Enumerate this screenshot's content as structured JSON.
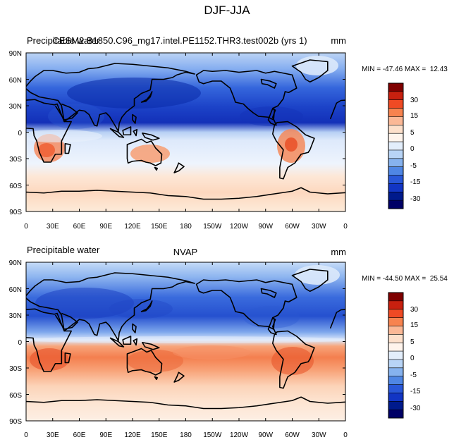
{
  "figure": {
    "title": "DJF-JJA"
  },
  "panels": [
    {
      "left_title": "Precipitable water",
      "center_title": "CESM2.B1850.C96_mg17.intel.PE1152.THR3.test002b (yrs 1)",
      "units": "mm",
      "stats": "MIN = -47.46 MAX =  12.43"
    },
    {
      "left_title": "Precipitable water",
      "center_title": "NVAP",
      "units": "mm",
      "stats": "MIN = -44.50 MAX =  25.54"
    }
  ],
  "axes": {
    "lat_labels": [
      "90N",
      "60N",
      "30N",
      "0",
      "30S",
      "60S",
      "90S"
    ],
    "lon_labels": [
      "0",
      "30E",
      "60E",
      "90E",
      "120E",
      "150E",
      "180",
      "150W",
      "120W",
      "90W",
      "60W",
      "30W",
      "0"
    ]
  },
  "colorbar": {
    "labels": [
      "30",
      "15",
      "5",
      "0",
      "-5",
      "-15",
      "-30"
    ],
    "colors": [
      "#7f0000",
      "#c8200f",
      "#ef4a24",
      "#f7834f",
      "#fbb896",
      "#fde0cb",
      "#fff4ec",
      "#e3eefb",
      "#b8d4f6",
      "#86b2ee",
      "#4f86e4",
      "#2957d8",
      "#1235c4",
      "#001a8c",
      "#000066"
    ]
  },
  "colors": {
    "land_outline": "#000000",
    "ocean_fallback": "#a9c8f0"
  }
}
